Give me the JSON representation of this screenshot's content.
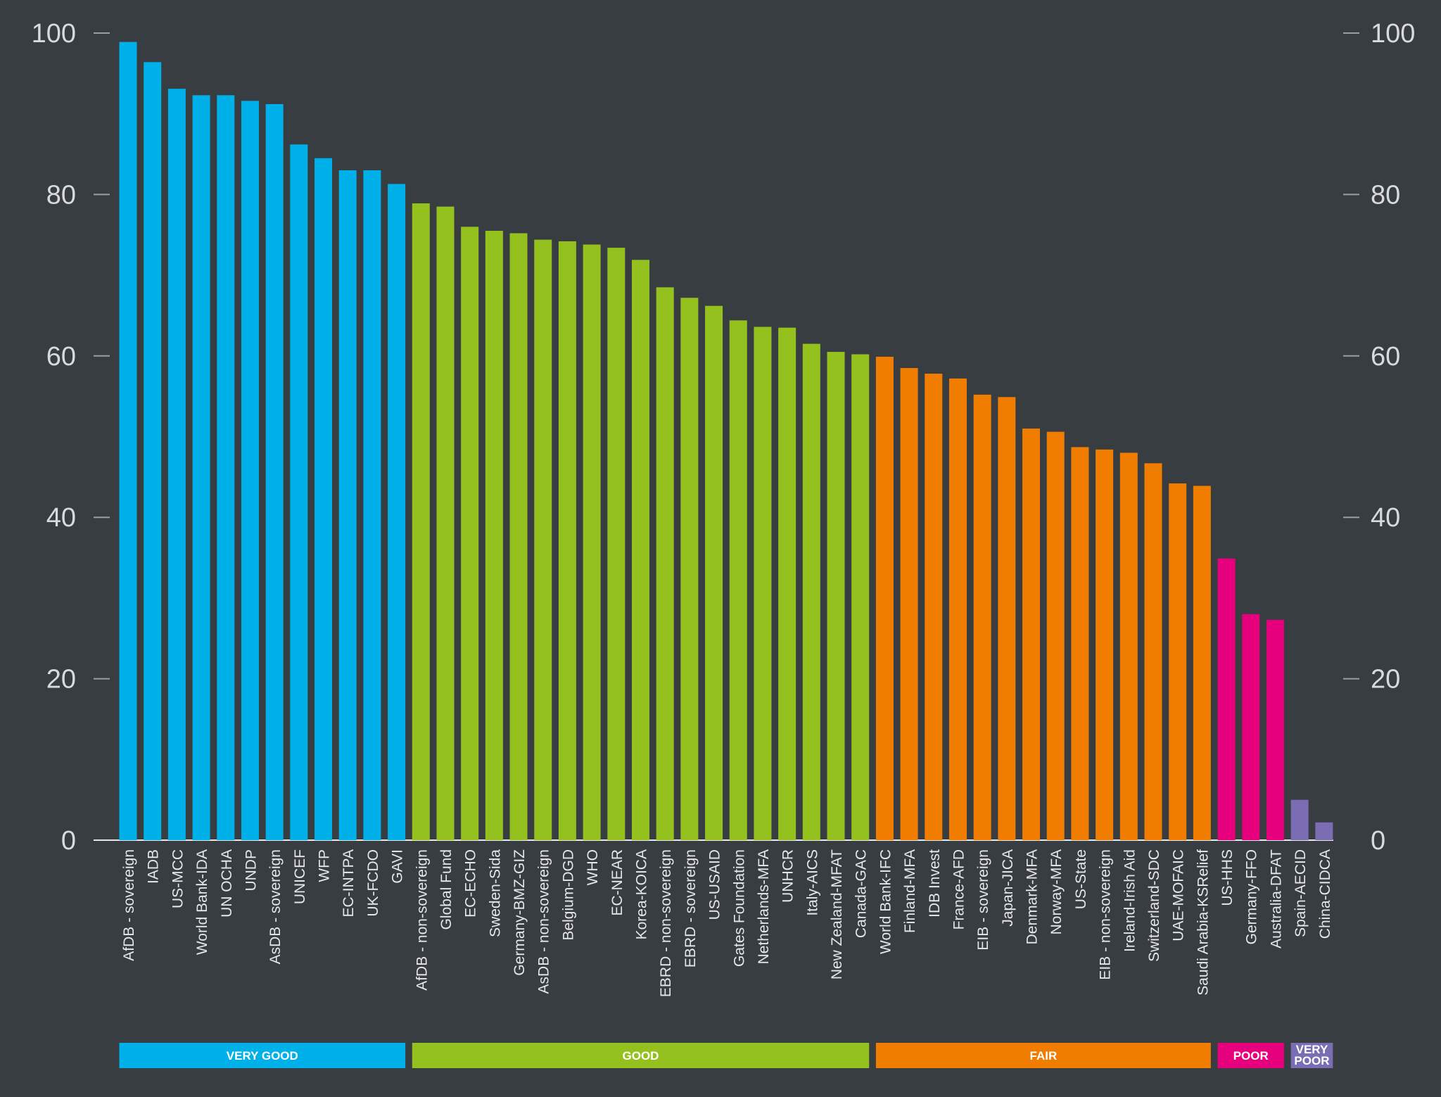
{
  "chart_data": {
    "type": "bar",
    "title": "",
    "xlabel": "",
    "ylabel": "",
    "ylim": [
      0,
      100
    ],
    "yticks": [
      0,
      20,
      40,
      60,
      80,
      100
    ],
    "grid": false,
    "categories": [
      "AfDB - sovereign",
      "IADB",
      "US-MCC",
      "World Bank-IDA",
      "UN OCHA",
      "UNDP",
      "AsDB - sovereign",
      "UNICEF",
      "WFP",
      "EC-INTPA",
      "UK-FCDO",
      "GAVI",
      "AfDB - non-sovereign",
      "Global Fund",
      "EC-ECHO",
      "Sweden-Sida",
      "Germany-BMZ-GIZ",
      "AsDB - non-sovereign",
      "Belgium-DGD",
      "WHO",
      "EC-NEAR",
      "Korea-KOICA",
      "EBRD - non-sovereign",
      "EBRD - sovereign",
      "US-USAID",
      "Gates Foundation",
      "Netherlands-MFA",
      "UNHCR",
      "Italy-AICS",
      "New Zealand-MFAT",
      "Canada-GAC",
      "World Bank-IFC",
      "Finland-MFA",
      "IDB Invest",
      "France-AFD",
      "EIB - sovereign",
      "Japan-JICA",
      "Denmark-MFA",
      "Norway-MFA",
      "US-State",
      "EIB - non-sovereign",
      "Ireland-Irish Aid",
      "Switzerland-SDC",
      "UAE-MOFAIC",
      "Saudi Arabia-KSRelief",
      "US-HHS",
      "Germany-FFO",
      "Australia-DFAT",
      "Spain-AECID",
      "China-CIDCA"
    ],
    "values": [
      98.9,
      96.4,
      93.1,
      92.3,
      92.3,
      91.6,
      91.2,
      86.2,
      84.5,
      83.0,
      83.0,
      81.3,
      78.9,
      78.5,
      76.0,
      75.5,
      75.2,
      74.4,
      74.2,
      73.8,
      73.4,
      71.9,
      68.5,
      67.2,
      66.2,
      64.4,
      63.6,
      63.5,
      61.5,
      60.5,
      60.2,
      59.9,
      58.5,
      57.8,
      57.2,
      55.2,
      54.9,
      51.0,
      50.6,
      48.7,
      48.4,
      48.0,
      46.7,
      44.2,
      43.9,
      34.9,
      28.0,
      27.3,
      5.0,
      2.2
    ],
    "groups": [
      {
        "label": "VERY GOOD",
        "color": "#00b0e8",
        "count": 12
      },
      {
        "label": "GOOD",
        "color": "#95c11f",
        "count": 19
      },
      {
        "label": "FAIR",
        "color": "#f07d00",
        "count": 14
      },
      {
        "label": "POOR",
        "color": "#e6007e",
        "count": 3
      },
      {
        "label": "VERY POOR",
        "color": "#7a6db3",
        "count": 2
      }
    ],
    "colors": {
      "background": "#383d42",
      "axis": "#e6e7e8",
      "tick_text": "#d8dadc",
      "band_text": "#ffffff"
    }
  }
}
